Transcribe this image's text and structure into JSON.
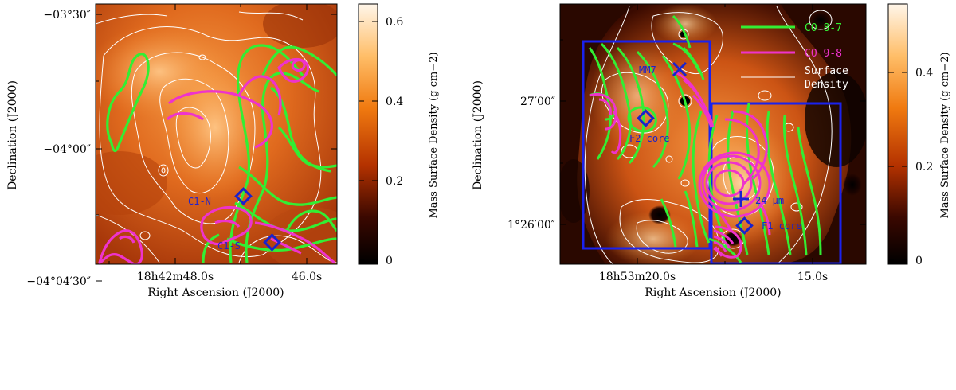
{
  "panels": [
    {
      "id": "left",
      "ra_ticks": [
        "18h42m48.0s",
        "46.0s"
      ],
      "dec_ticks": [
        "−03°30″",
        "−04°00″",
        "−04°04′30″"
      ],
      "xlabel": "Right Ascension (J2000)",
      "ylabel": "Declination (J2000)",
      "colorbar": {
        "label": "Mass Surface Density (g cm−2)",
        "ticks": [
          "0",
          "0.2",
          "0.4",
          "0.6"
        ],
        "range": [
          0,
          0.65
        ]
      },
      "markers": [
        {
          "symbol": "diamond",
          "label": "C1-N"
        },
        {
          "symbol": "diamond",
          "label": "C1-S"
        }
      ]
    },
    {
      "id": "right",
      "ra_ticks": [
        "18h53m20.0s",
        "15.0s"
      ],
      "dec_ticks": [
        "27′00″",
        "1°26′00″"
      ],
      "xlabel": "Right Ascension (J2000)",
      "ylabel": "Declination (J2000)",
      "colorbar": {
        "label": "Mass Surface Density (g cm−2)",
        "ticks": [
          "0",
          "0.2",
          "0.4"
        ],
        "range": [
          0,
          0.55
        ]
      },
      "markers": [
        {
          "symbol": "x",
          "label": "MM7"
        },
        {
          "symbol": "diamond",
          "label": "F2 core"
        },
        {
          "symbol": "plus",
          "label": "24 μm"
        },
        {
          "symbol": "diamond",
          "label": "F1 core"
        }
      ],
      "legend": [
        {
          "label": "CO 8-7",
          "color": "#33ee33"
        },
        {
          "label": "CO 9-8",
          "color": "#ee33cc"
        },
        {
          "label_lines": [
            "Surface",
            "Density"
          ],
          "color": "#ffffff"
        }
      ]
    }
  ],
  "colors": {
    "co87": "#33ee33",
    "co98": "#ee33cc",
    "surface_density_contour": "#ffffff",
    "markers": "#1a22cc",
    "boxes": "#1a22ee",
    "label_text_left": "#2222cc",
    "label_text_right": "#1a22cc"
  }
}
